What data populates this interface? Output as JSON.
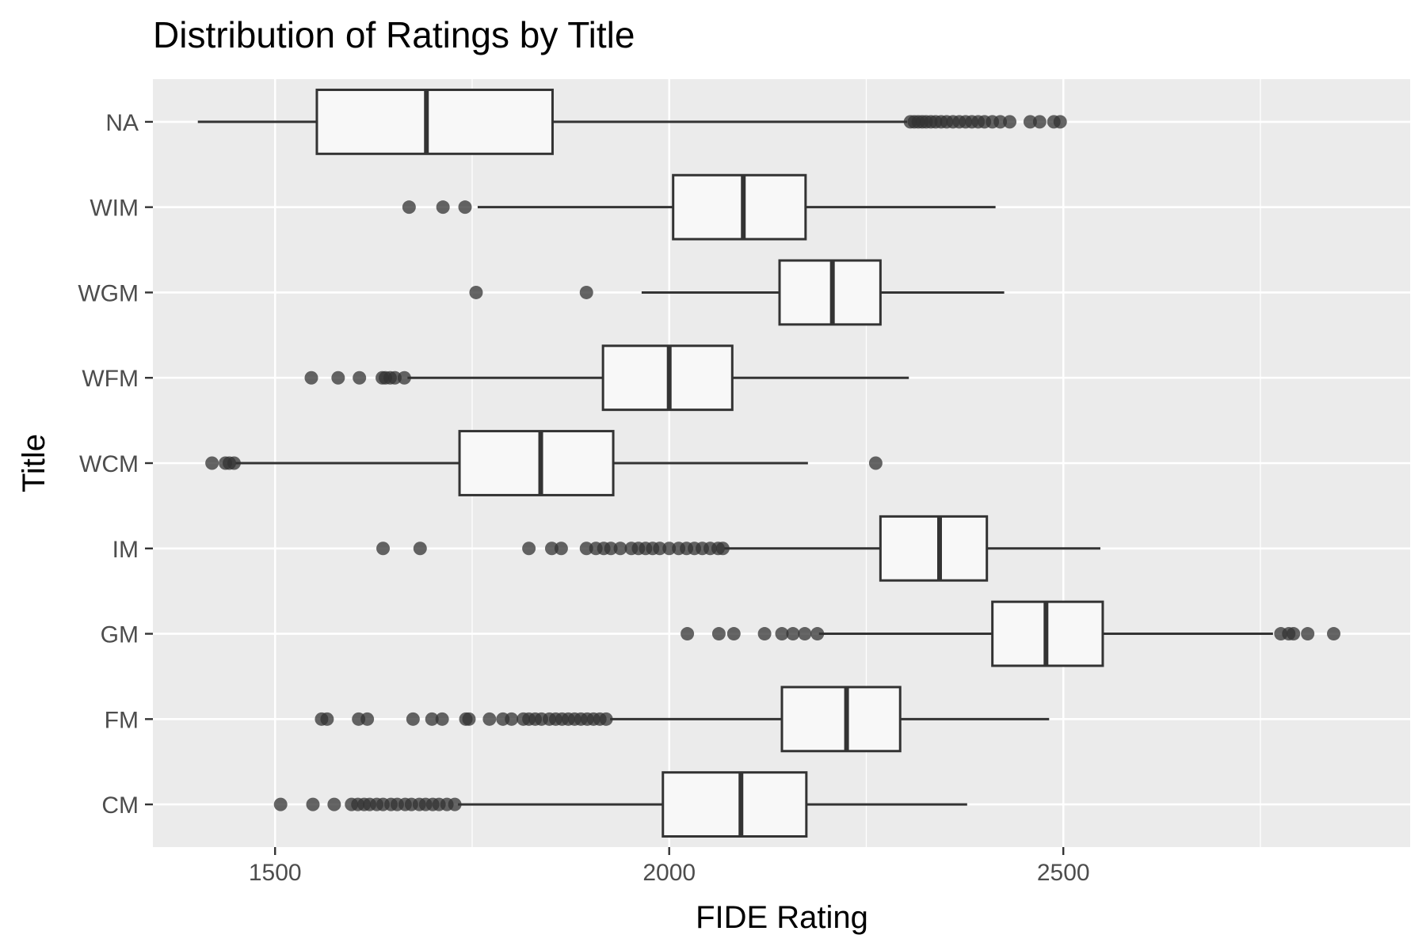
{
  "chart_data": {
    "type": "boxplot",
    "title": "Distribution of Ratings by Title",
    "xlabel": "FIDE Rating",
    "ylabel": "Title",
    "orientation": "horizontal",
    "xlim": [
      1345,
      2940
    ],
    "x_ticks": [
      1500,
      2000,
      2500
    ],
    "grid": true,
    "colors": {
      "panel": "#ebebeb",
      "grid": "#ffffff",
      "box_fill": "#f8f8f8",
      "box_stroke": "#333333",
      "outlier": "#333333"
    },
    "categories": [
      "CM",
      "FM",
      "GM",
      "IM",
      "WCM",
      "WFM",
      "WGM",
      "WIM",
      "NA"
    ],
    "series": [
      {
        "category": "NA",
        "whisker_low": 1402,
        "q1": 1553,
        "median": 1692,
        "q3": 1852,
        "whisker_high": 2302,
        "outliers": [
          2306,
          2311,
          2316,
          2321,
          2326,
          2332,
          2338,
          2345,
          2352,
          2360,
          2368,
          2376,
          2384,
          2392,
          2400,
          2410,
          2420,
          2432,
          2458,
          2470,
          2488,
          2496
        ]
      },
      {
        "category": "WIM",
        "whisker_low": 1757,
        "q1": 2005,
        "median": 2094,
        "q3": 2173,
        "whisker_high": 2414,
        "outliers": [
          1670,
          1713,
          1741
        ]
      },
      {
        "category": "WGM",
        "whisker_low": 1965,
        "q1": 2140,
        "median": 2207,
        "q3": 2268,
        "whisker_high": 2425,
        "outliers": [
          1755,
          1895
        ]
      },
      {
        "category": "WFM",
        "whisker_low": 1668,
        "q1": 1916,
        "median": 2000,
        "q3": 2080,
        "whisker_high": 2304,
        "outliers": [
          1546,
          1580,
          1607,
          1636,
          1640,
          1646,
          1652,
          1664
        ]
      },
      {
        "category": "WCM",
        "whisker_low": 1450,
        "q1": 1734,
        "median": 1837,
        "q3": 1929,
        "whisker_high": 2176,
        "outliers": [
          1420,
          1437,
          1442,
          1448,
          2262
        ]
      },
      {
        "category": "IM",
        "whisker_low": 2070,
        "q1": 2268,
        "median": 2343,
        "q3": 2403,
        "whisker_high": 2547,
        "outliers": [
          1637,
          1684,
          1822,
          1851,
          1863,
          1895,
          1907,
          1917,
          1926,
          1938,
          1952,
          1961,
          1970,
          1979,
          1988,
          2000,
          2012,
          2022,
          2032,
          2042,
          2052,
          2062,
          2068
        ]
      },
      {
        "category": "GM",
        "whisker_low": 2190,
        "q1": 2410,
        "median": 2478,
        "q3": 2550,
        "whisker_high": 2766,
        "outliers": [
          2023,
          2063,
          2082,
          2121,
          2143,
          2157,
          2172,
          2188,
          2776,
          2786,
          2792,
          2810,
          2843
        ]
      },
      {
        "category": "FM",
        "whisker_low": 1925,
        "q1": 2143,
        "median": 2225,
        "q3": 2293,
        "whisker_high": 2482,
        "outliers": [
          1559,
          1566,
          1606,
          1617,
          1675,
          1699,
          1712,
          1742,
          1746,
          1772,
          1789,
          1800,
          1815,
          1822,
          1830,
          1838,
          1848,
          1856,
          1864,
          1872,
          1880,
          1888,
          1896,
          1904,
          1912,
          1920
        ]
      },
      {
        "category": "CM",
        "whisker_low": 1732,
        "q1": 1992,
        "median": 2091,
        "q3": 2174,
        "whisker_high": 2378,
        "outliers": [
          1507,
          1548,
          1575,
          1597,
          1605,
          1613,
          1620,
          1629,
          1637,
          1647,
          1655,
          1665,
          1673,
          1683,
          1691,
          1700,
          1708,
          1718,
          1728
        ]
      }
    ]
  }
}
